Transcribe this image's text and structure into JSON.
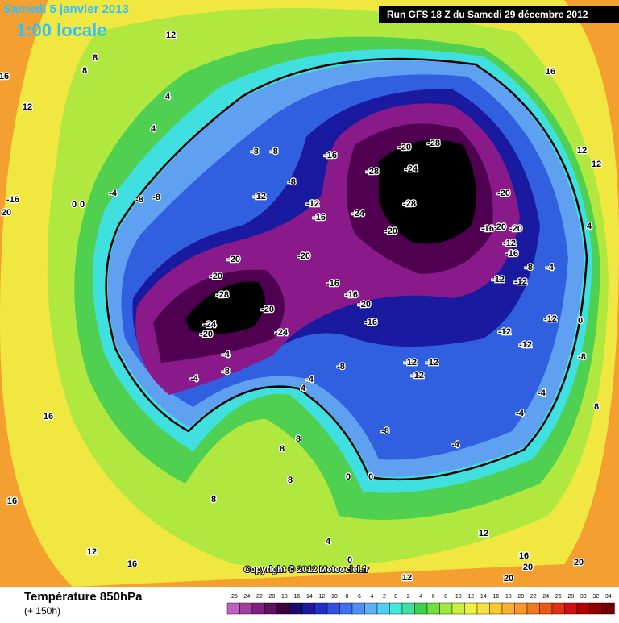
{
  "header": {
    "date": "Samedi 5 janvier 2013",
    "time": "1:00 locale",
    "run": "Run GFS 18 Z du Samedi 29 décembre 2012"
  },
  "map": {
    "copyright": "Copyright © 2012 Meteociel.fr",
    "contour_labels": [
      12,
      8,
      16,
      8,
      12,
      4,
      4,
      -8,
      -8,
      -16,
      -20,
      -28,
      -28,
      -24,
      -20,
      -24,
      -28,
      -20,
      -20,
      -16,
      -20,
      -12,
      -16,
      -12,
      -16,
      -12,
      -8,
      -20,
      -20,
      -20,
      -16,
      -16,
      -20,
      -16,
      -28,
      -20,
      -24,
      -20,
      -24,
      -4,
      -4,
      -8,
      -8,
      -4,
      4,
      -12,
      -12,
      -12,
      -12,
      -12,
      -8,
      -4,
      -12,
      -12,
      -12,
      -8,
      0,
      8,
      -4,
      -4,
      -4,
      -8,
      0,
      0,
      8,
      8,
      8,
      8,
      16,
      16,
      12,
      16,
      4,
      0,
      12,
      12,
      16,
      20,
      20,
      20,
      16,
      12,
      12,
      4,
      -16,
      20,
      0,
      0,
      -8,
      -8,
      -4
    ]
  },
  "footer": {
    "title": "Température 850hPa",
    "lead": "(+ 150h)"
  },
  "colorbar": {
    "values": [
      -26,
      -24,
      -22,
      -20,
      -18,
      -16,
      -14,
      -12,
      -10,
      -8,
      -6,
      -4,
      -2,
      0,
      2,
      4,
      6,
      8,
      10,
      12,
      14,
      16,
      18,
      20,
      22,
      24,
      26,
      28,
      30,
      32,
      34
    ],
    "colors": [
      "#c060c0",
      "#a040a0",
      "#802080",
      "#601060",
      "#400040",
      "#1a0a6a",
      "#1a1aa0",
      "#2030c8",
      "#3050e0",
      "#4070f0",
      "#5090f0",
      "#60b0f8",
      "#50d0f0",
      "#40e8e0",
      "#40e0a0",
      "#40d050",
      "#70e040",
      "#a0e840",
      "#c8f040",
      "#f0f040",
      "#f8e040",
      "#f8c830",
      "#f8b030",
      "#f89828",
      "#f07820",
      "#e85818",
      "#e03010",
      "#d01010",
      "#b00000",
      "#900000",
      "#700000"
    ]
  }
}
